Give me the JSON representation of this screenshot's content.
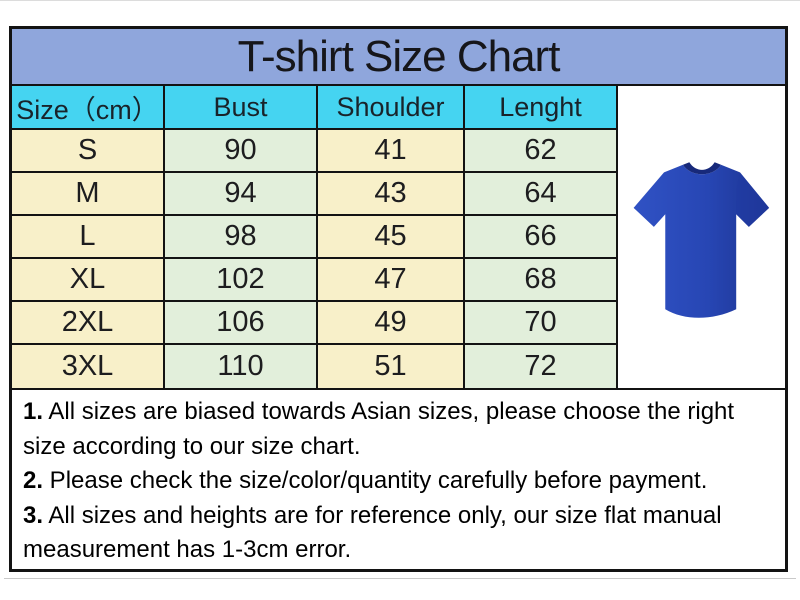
{
  "title": "T-shirt Size Chart",
  "chart_data": {
    "type": "table",
    "title": "T-shirt Size Chart",
    "columns": [
      "Size（cm）",
      "Bust",
      "Shoulder",
      "Lenght"
    ],
    "rows": [
      [
        "S",
        "90",
        "41",
        "62"
      ],
      [
        "M",
        "94",
        "43",
        "64"
      ],
      [
        "L",
        "98",
        "45",
        "66"
      ],
      [
        "XL",
        "102",
        "47",
        "68"
      ],
      [
        "2XL",
        "106",
        "49",
        "70"
      ],
      [
        "3XL",
        "110",
        "51",
        "72"
      ]
    ],
    "layout": {
      "column_fill_alternation": [
        "cream",
        "green"
      ],
      "grid": "on"
    }
  },
  "notes": [
    {
      "num": "1.",
      "text": " All sizes are biased towards Asian sizes, please choose the right size according to our size chart."
    },
    {
      "num": "2.",
      "text": " Please check the size/color/quantity carefully before payment."
    },
    {
      "num": "3.",
      "text": " All sizes and heights are for reference only, our size flat manual measurement has 1-3cm error."
    }
  ],
  "product_image": {
    "description": "blue short-sleeve t-shirt",
    "shirt_color": "#2746b4",
    "shirt_color_dark": "#1c338f",
    "collar_color": "#17297a"
  },
  "colors": {
    "title_bg": "#8fa6dc",
    "header_bg": "#45d4f1",
    "cell_cream": "#f8f0c9",
    "cell_green": "#e2efdb",
    "border": "#131313",
    "background": "#ffffff"
  }
}
